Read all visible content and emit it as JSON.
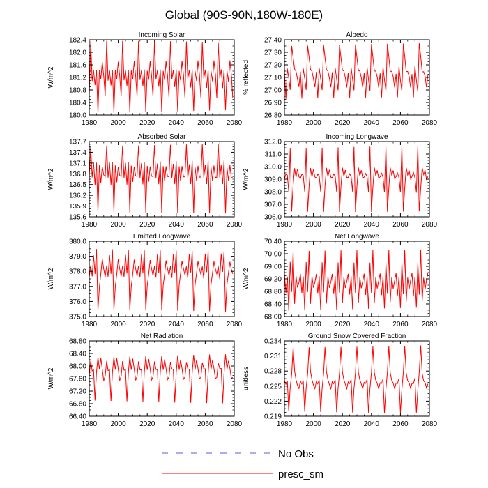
{
  "title": "Global (90S-90N,180W-180E)",
  "colors": {
    "series": "#ff0000",
    "no_obs": "#5b5bd6",
    "axis": "#000000"
  },
  "legend": [
    {
      "label": "No Obs",
      "style": "dashed"
    },
    {
      "label": "presc_sm",
      "style": "solid"
    }
  ],
  "chart_data": [
    {
      "type": "line",
      "title": "Incoming Solar",
      "ylabel": "W/m^2",
      "xlim": [
        1980,
        2080
      ],
      "xticks": [
        1980,
        2000,
        2020,
        2040,
        2060,
        2080
      ],
      "ylim": [
        180.0,
        182.4
      ],
      "yticks": [
        180.0,
        180.4,
        180.8,
        181.2,
        181.6,
        182.0,
        182.4
      ],
      "ydec": 1,
      "pattern": [
        0.26,
        0.95,
        0.46,
        0.63,
        0.38,
        0.57,
        0.05,
        0.62,
        0.45,
        0.69,
        0.55
      ]
    },
    {
      "type": "line",
      "title": "Albedo",
      "ylabel": "% reflected",
      "xlim": [
        1980,
        2080
      ],
      "xticks": [
        1980,
        2000,
        2020,
        2040,
        2060,
        2080
      ],
      "ylim": [
        26.8,
        27.4
      ],
      "yticks": [
        26.8,
        26.9,
        27.0,
        27.1,
        27.2,
        27.3,
        27.4
      ],
      "ydec": 2,
      "pattern": [
        0.55,
        0.2,
        0.65,
        0.5,
        0.3,
        0.92,
        0.8,
        0.6,
        0.55,
        0.5,
        0.4
      ]
    },
    {
      "type": "line",
      "title": "Absorbed Solar",
      "ylabel": "W/m^2",
      "xlim": [
        1980,
        2080
      ],
      "xticks": [
        1980,
        2000,
        2020,
        2040,
        2060,
        2080
      ],
      "ylim": [
        135.6,
        137.7
      ],
      "yticks": [
        135.6,
        135.9,
        136.2,
        136.5,
        136.8,
        137.1,
        137.4,
        137.7
      ],
      "ydec": 1,
      "pattern": [
        0.5,
        0.95,
        0.55,
        0.7,
        0.4,
        0.75,
        0.08,
        0.65,
        0.45,
        0.7,
        0.55
      ]
    },
    {
      "type": "line",
      "title": "Incoming Longwave",
      "ylabel": "W/m^2",
      "xlim": [
        1980,
        2080
      ],
      "xticks": [
        1980,
        2000,
        2020,
        2040,
        2060,
        2080
      ],
      "ylim": [
        306.0,
        312.0
      ],
      "yticks": [
        306.0,
        307.0,
        308.0,
        309.0,
        310.0,
        311.0,
        312.0
      ],
      "ydec": 1,
      "pattern": [
        0.5,
        0.6,
        0.55,
        0.3,
        0.92,
        0.1,
        0.4,
        0.62,
        0.55,
        0.65,
        0.5
      ]
    },
    {
      "type": "line",
      "title": "Emitted Longwave",
      "ylabel": "W/m^2",
      "xlim": [
        1980,
        2080
      ],
      "xticks": [
        1980,
        2000,
        2020,
        2040,
        2060,
        2080
      ],
      "ylim": [
        375.0,
        380.0
      ],
      "yticks": [
        375.0,
        376.0,
        377.0,
        378.0,
        379.0,
        380.0
      ],
      "ydec": 1,
      "pattern": [
        0.55,
        0.7,
        0.5,
        0.8,
        0.6,
        0.9,
        0.05,
        0.4,
        0.6,
        0.75,
        0.6
      ]
    },
    {
      "type": "line",
      "title": "Net Longwave",
      "ylabel": "W/m^2",
      "xlim": [
        1980,
        2080
      ],
      "xticks": [
        1980,
        2000,
        2020,
        2040,
        2060,
        2080
      ],
      "ylim": [
        68.0,
        70.4
      ],
      "yticks": [
        68.0,
        68.4,
        68.8,
        69.2,
        69.6,
        70.0,
        70.4
      ],
      "ydec": 2,
      "pattern": [
        0.6,
        0.3,
        0.5,
        0.1,
        0.75,
        0.3,
        0.85,
        0.2,
        0.55,
        0.35,
        0.45
      ]
    },
    {
      "type": "line",
      "title": "Net Radiation",
      "ylabel": "W/m^2",
      "xlim": [
        1980,
        2080
      ],
      "xticks": [
        1980,
        2000,
        2020,
        2040,
        2060,
        2080
      ],
      "ylim": [
        66.4,
        68.8
      ],
      "yticks": [
        66.4,
        66.8,
        67.2,
        67.6,
        68.0,
        68.4,
        68.8
      ],
      "ydec": 2,
      "pattern": [
        0.55,
        0.7,
        0.6,
        0.65,
        0.2,
        0.55,
        0.8,
        0.65,
        0.75,
        0.6,
        0.5
      ]
    },
    {
      "type": "line",
      "title": "Ground Snow Covered Fraction",
      "ylabel": "unitless",
      "xlim": [
        1980,
        2080
      ],
      "xticks": [
        1980,
        2000,
        2020,
        2040,
        2060,
        2080
      ],
      "ylim": [
        0.219,
        0.234
      ],
      "yticks": [
        0.219,
        0.222,
        0.225,
        0.228,
        0.231,
        0.234
      ],
      "ydec": 3,
      "pattern": [
        0.45,
        0.4,
        0.5,
        0.08,
        0.35,
        0.55,
        0.95,
        0.6,
        0.45,
        0.42,
        0.4
      ]
    }
  ]
}
